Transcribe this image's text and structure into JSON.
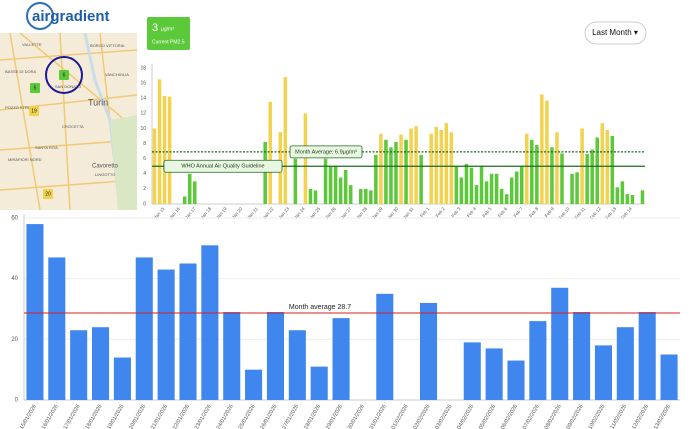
{
  "logo": "airgradient",
  "map": {
    "labels": [
      "VALLETTE",
      "BORGO VITTORIA",
      "BASSE DI DORA",
      "SAN DONATO",
      "POZZO STRADA",
      "Turin",
      "CROCETTA",
      "SANTA RITA",
      "MIRAFIORI NORD",
      "LINGOTTO",
      "VANCHIGLIA",
      "Cavoretto"
    ],
    "markers": [
      {
        "label": "6",
        "color": "#5cc93a"
      },
      {
        "label": "5",
        "color": "#5cc93a"
      },
      {
        "label": "19",
        "color": "#f2d34f"
      },
      {
        "label": "20",
        "color": "#f2d34f"
      }
    ]
  },
  "badge": {
    "value": "3",
    "unit": "µg/m³",
    "caption": "Current PM2.5"
  },
  "dropdown": "Last Month ▾",
  "chart_data": [
    {
      "type": "bar",
      "values": [
        10,
        16.5,
        14.3,
        14.2,
        null,
        null,
        1,
        4,
        3,
        null,
        null,
        null,
        null,
        null,
        null,
        null,
        null,
        null,
        null,
        null,
        null,
        null,
        8.2,
        13.5,
        null,
        9.5,
        16.8,
        null,
        6,
        null,
        12,
        2,
        1.8,
        null,
        6,
        5,
        5,
        3.5,
        4.5,
        2.5,
        null,
        2,
        2,
        1.8,
        6.5,
        9.3,
        8.5,
        7.5,
        8.2,
        9.2,
        8.5,
        10,
        10.3,
        6.5,
        null,
        9.3,
        10.2,
        9.8,
        10.7,
        9.5,
        5,
        3.5,
        5.3,
        4.8,
        2.5,
        5,
        3,
        4,
        4,
        2,
        1.3,
        3.5,
        4.3,
        5,
        9.3,
        8.5,
        7.8,
        14.5,
        13.7,
        7.5,
        9.5,
        6.7,
        null,
        4,
        4.2,
        10,
        6.6,
        7.2,
        8.8,
        10.7,
        9.8,
        9,
        2.2,
        3,
        1.3,
        1.2,
        null,
        1.8
      ],
      "color_scale": {
        "threshold": 9,
        "low": "#5cc93a",
        "high": "#f2d34f"
      },
      "xlabels": [
        "Jan 15",
        "Jan 16",
        "Jan 17",
        "Jan 18",
        "Jan 19",
        "Jan 20",
        "Jan 21",
        "Jan 22",
        "Jan 23",
        "Jan 24",
        "Jan 25",
        "Jan 26",
        "Jan 27",
        "Jan 28",
        "Jan 29",
        "Jan 30",
        "Jan 31",
        "Feb 1",
        "Feb 2",
        "Feb 3",
        "Feb 4",
        "Feb 5",
        "Feb 6",
        "Feb 7",
        "Feb 8",
        "Feb 9",
        "Feb 10",
        "Feb 11",
        "Feb 12",
        "Feb 13",
        "Feb 14"
      ],
      "ylim": [
        0,
        18
      ],
      "yticks": [
        0,
        2,
        4,
        6,
        8,
        10,
        12,
        14,
        16,
        18
      ],
      "reference_lines": [
        {
          "value": 5,
          "label": "WHO Annual Air Quality Guideline",
          "color": "#1d6b1d",
          "dashed": false
        },
        {
          "value": 6.9,
          "label": "Month Average: 6.9µg/m³",
          "color": "#1d6b1d",
          "dashed": true
        }
      ]
    },
    {
      "type": "bar",
      "categories": [
        "15/01/2026",
        "16/01/2026",
        "17/01/2026",
        "18/01/2026",
        "19/01/2026",
        "20/01/2026",
        "21/01/2026",
        "22/01/2026",
        "23/01/2026",
        "24/01/2026",
        "25/01/2026",
        "26/01/2026",
        "27/01/2026",
        "28/01/2026",
        "29/01/2026",
        "30/01/2026",
        "31/01/2026",
        "01/02/2026",
        "02/02/2026",
        "03/02/2026",
        "04/02/2026",
        "05/02/2026",
        "06/02/2026",
        "07/02/2026",
        "08/02/2026",
        "09/02/2026",
        "10/02/2026",
        "11/02/2026",
        "12/02/2026",
        "13/02/2026"
      ],
      "values": [
        58,
        47,
        23,
        24,
        14,
        47,
        43,
        45,
        51,
        29,
        10,
        29,
        23,
        11,
        27,
        null,
        35,
        null,
        32,
        null,
        19,
        17,
        13,
        26,
        37,
        29,
        18,
        24,
        29,
        15
      ],
      "color": "#3f86ee",
      "ylim": [
        0,
        60
      ],
      "yticks": [
        0,
        20,
        40,
        60
      ],
      "grid": true,
      "reference_lines": [
        {
          "value": 28.7,
          "label": "Month average 28.7",
          "color": "#d62020",
          "dashed": false
        }
      ]
    }
  ]
}
